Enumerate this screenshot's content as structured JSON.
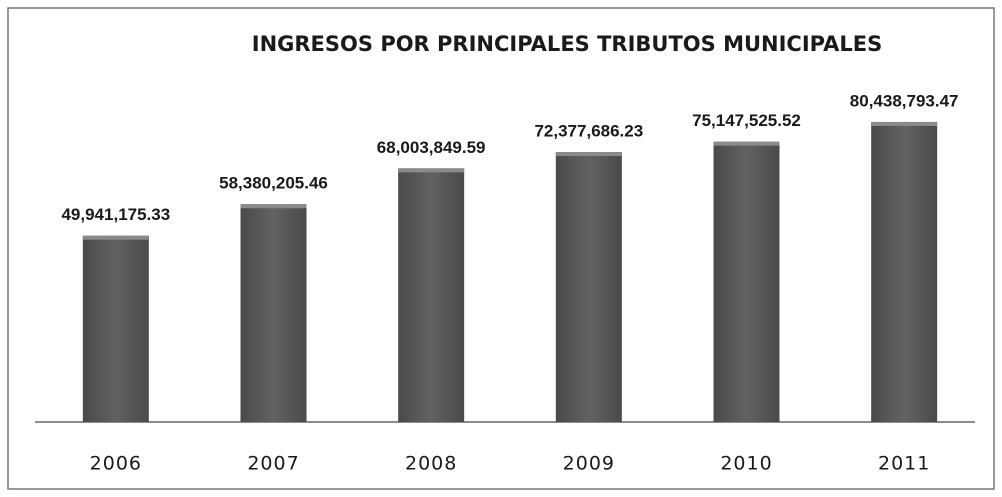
{
  "chart_data": {
    "type": "bar",
    "title": "INGRESOS POR PRINCIPALES TRIBUTOS MUNICIPALES",
    "categories": [
      "2006",
      "2007",
      "2008",
      "2009",
      "2010",
      "2011"
    ],
    "values": [
      49941175.33,
      58380205.46,
      68003849.59,
      72377686.23,
      75147525.52,
      80438793.47
    ],
    "value_labels": [
      "49,941,175.33",
      "58,380,205.46",
      "68,003,849.59",
      "72,377,686.23",
      "75,147,525.52",
      "80,438,793.47"
    ],
    "color": "#575757",
    "ylim": [
      0,
      100000000
    ]
  }
}
